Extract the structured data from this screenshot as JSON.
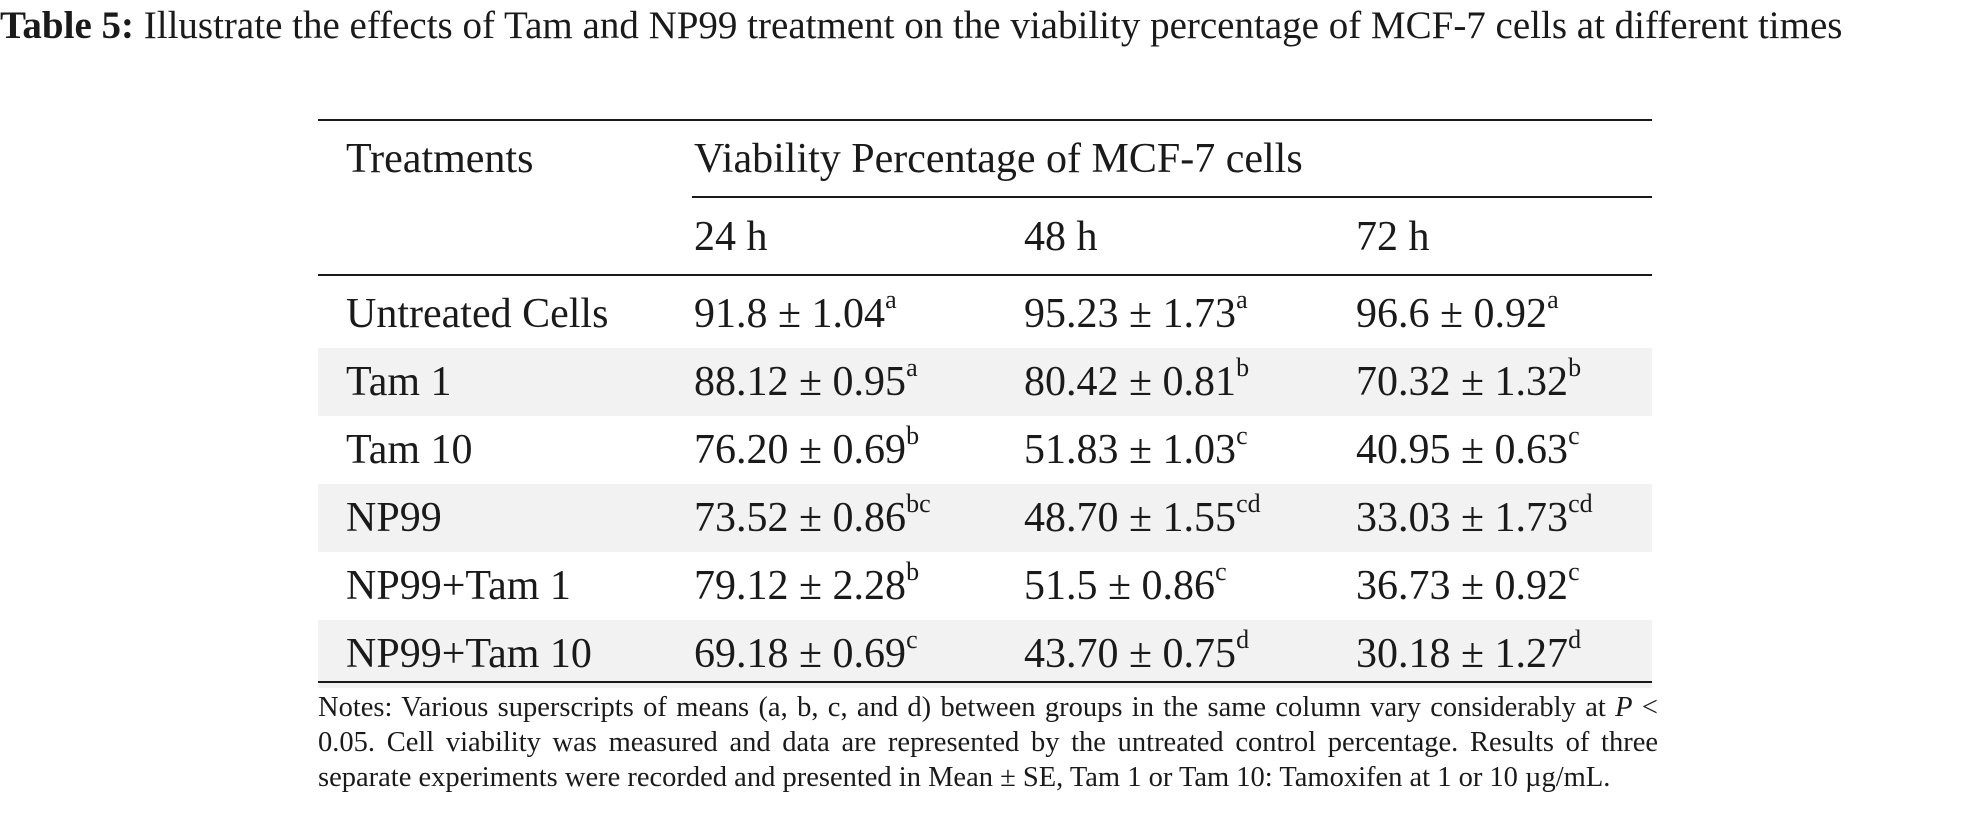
{
  "caption": {
    "label": "Table 5:",
    "text": "Illustrate the effects of Tam and NP99 treatment on the viability percentage of MCF-7 cells at different times"
  },
  "table": {
    "header_treatments": "Treatments",
    "header_group": "Viability Percentage of MCF-7 cells",
    "times": [
      "24 h",
      "48 h",
      "72 h"
    ],
    "rows": [
      {
        "name": "Untreated Cells",
        "v": [
          "91.8 ± 1.04",
          "95.23 ± 1.73",
          "96.6 ± 0.92"
        ],
        "s": [
          "a",
          "a",
          "a"
        ]
      },
      {
        "name": "Tam 1",
        "v": [
          "88.12 ± 0.95",
          "80.42 ± 0.81",
          "70.32 ± 1.32"
        ],
        "s": [
          "a",
          "b",
          "b"
        ]
      },
      {
        "name": "Tam 10",
        "v": [
          "76.20 ± 0.69",
          "51.83 ± 1.03",
          "40.95 ± 0.63"
        ],
        "s": [
          "b",
          "c",
          "c"
        ]
      },
      {
        "name": "NP99",
        "v": [
          "73.52 ± 0.86",
          "48.70 ± 1.55",
          "33.03 ± 1.73"
        ],
        "s": [
          "bc",
          "cd",
          "cd"
        ]
      },
      {
        "name": "NP99+Tam 1",
        "v": [
          "79.12 ± 2.28",
          "51.5 ± 0.86",
          "36.73 ± 0.92"
        ],
        "s": [
          "b",
          "c",
          "c"
        ]
      },
      {
        "name": "NP99+Tam 10",
        "v": [
          "69.18 ± 0.69",
          "43.70 ± 0.75",
          "30.18 ± 1.27"
        ],
        "s": [
          "c",
          "d",
          "d"
        ]
      }
    ]
  },
  "notes": {
    "part1": "Notes: Various superscripts of means (a, b, c, and d) between groups in the same column vary considerably at ",
    "p": "P",
    "part2": " < 0.05. Cell viability was measured and data are represented by the untreated control percentage. Results of three separate experiments were recorded and presented in Mean ± SE, Tam 1 or Tam 10: Tamoxifen at 1 or 10 µg/mL."
  }
}
